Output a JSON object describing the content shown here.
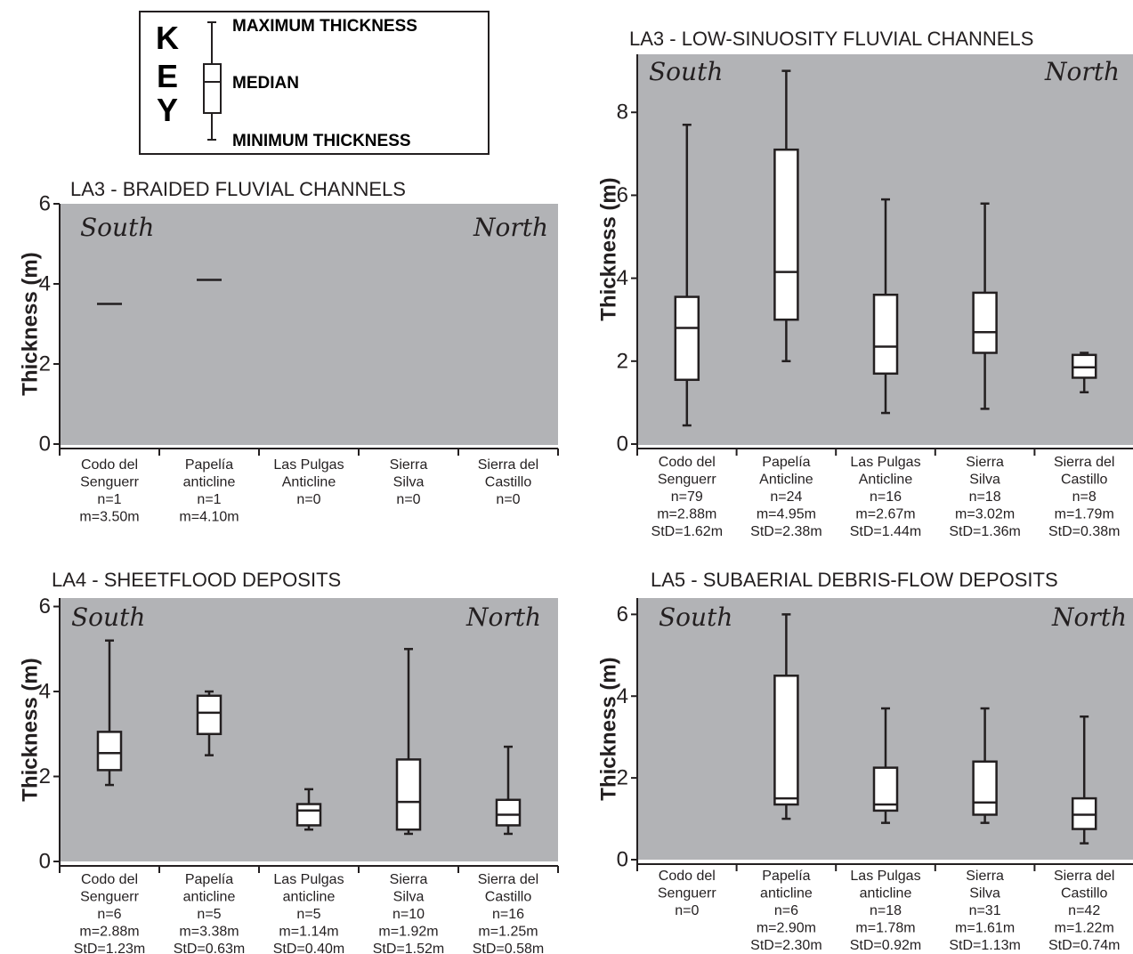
{
  "key": {
    "letters": [
      "K",
      "E",
      "Y"
    ],
    "max_label": "MAXIMUM THICKNESS",
    "median_label": "MEDIAN",
    "min_label": "MINIMUM THICKNESS"
  },
  "chart_data": [
    {
      "type": "box",
      "title": "LA3 - BRAIDED FLUVIAL CHANNELS",
      "ylabel": "Thickness  (m)",
      "ylim": [
        0,
        6
      ],
      "yticks": [
        0,
        2,
        4,
        6
      ],
      "direction_labels": [
        "South",
        "North"
      ],
      "background": "#b2b3b6",
      "categories": [
        {
          "label": [
            "Codo del",
            "Senguerr",
            "n=1",
            "m=3.50m"
          ],
          "box": {
            "median": 3.5
          }
        },
        {
          "label": [
            "Papelía",
            "anticline",
            "n=1",
            "m=4.10m"
          ],
          "box": {
            "median": 4.1
          }
        },
        {
          "label": [
            "Las Pulgas",
            "Anticline",
            "n=0"
          ],
          "box": null
        },
        {
          "label": [
            "Sierra",
            "Silva",
            "n=0"
          ],
          "box": null
        },
        {
          "label": [
            "Sierra del",
            "Castillo",
            "n=0"
          ],
          "box": null
        }
      ]
    },
    {
      "type": "box",
      "title": "LA3 - LOW-SINUOSITY FLUVIAL CHANNELS",
      "ylabel": "Thickness  (m)",
      "ylim": [
        0,
        9.4
      ],
      "yticks": [
        0,
        2,
        4,
        6,
        8
      ],
      "direction_labels": [
        "South",
        "North"
      ],
      "background": "#b2b3b6",
      "categories": [
        {
          "label": [
            "Codo del",
            "Senguerr",
            "n=79",
            "m=2.88m",
            "StD=1.62m"
          ],
          "box": {
            "min": 0.45,
            "q1": 1.55,
            "median": 2.8,
            "q3": 3.55,
            "max": 7.7
          }
        },
        {
          "label": [
            "Papelía",
            "Anticline",
            "n=24",
            "m=4.95m",
            "StD=2.38m"
          ],
          "box": {
            "min": 2.0,
            "q1": 3.0,
            "median": 4.15,
            "q3": 7.1,
            "max": 9.0
          }
        },
        {
          "label": [
            "Las Pulgas",
            "Anticline",
            "n=16",
            "m=2.67m",
            "StD=1.44m"
          ],
          "box": {
            "min": 0.75,
            "q1": 1.7,
            "median": 2.35,
            "q3": 3.6,
            "max": 5.9
          }
        },
        {
          "label": [
            "Sierra",
            "Silva",
            "n=18",
            "m=3.02m",
            "StD=1.36m"
          ],
          "box": {
            "min": 0.85,
            "q1": 2.2,
            "median": 2.7,
            "q3": 3.65,
            "max": 5.8
          }
        },
        {
          "label": [
            "Sierra del",
            "Castillo",
            "n=8",
            "m=1.79m",
            "StD=0.38m"
          ],
          "box": {
            "min": 1.25,
            "q1": 1.6,
            "median": 1.85,
            "q3": 2.15,
            "max": 2.2
          }
        }
      ]
    },
    {
      "type": "box",
      "title": "LA4 - SHEETFLOOD DEPOSITS",
      "ylabel": "Thickness  (m)",
      "ylim": [
        0,
        6.2
      ],
      "yticks": [
        0,
        2,
        4,
        6
      ],
      "direction_labels": [
        "South",
        "North"
      ],
      "background": "#b2b3b6",
      "categories": [
        {
          "label": [
            "Codo del",
            "Senguerr",
            "n=6",
            "m=2.88m",
            "StD=1.23m"
          ],
          "box": {
            "min": 1.8,
            "q1": 2.15,
            "median": 2.55,
            "q3": 3.05,
            "max": 5.2
          }
        },
        {
          "label": [
            "Papelía",
            "anticline",
            "n=5",
            "m=3.38m",
            "StD=0.63m"
          ],
          "box": {
            "min": 2.5,
            "q1": 3.0,
            "median": 3.5,
            "q3": 3.9,
            "max": 4.0
          }
        },
        {
          "label": [
            "Las Pulgas",
            "anticline",
            "n=5",
            "m=1.14m",
            "StD=0.40m"
          ],
          "box": {
            "min": 0.75,
            "q1": 0.85,
            "median": 1.2,
            "q3": 1.35,
            "max": 1.7
          }
        },
        {
          "label": [
            "Sierra",
            "Silva",
            "n=10",
            "m=1.92m",
            "StD=1.52m"
          ],
          "box": {
            "min": 0.65,
            "q1": 0.75,
            "median": 1.4,
            "q3": 2.4,
            "max": 5.0
          }
        },
        {
          "label": [
            "Sierra del",
            "Castillo",
            "n=16",
            "m=1.25m",
            "StD=0.58m"
          ],
          "box": {
            "min": 0.65,
            "q1": 0.85,
            "median": 1.1,
            "q3": 1.45,
            "max": 2.7
          }
        }
      ]
    },
    {
      "type": "box",
      "title": "LA5 - SUBAERIAL DEBRIS-FLOW DEPOSITS",
      "ylabel": "Thickness  (m)",
      "ylim": [
        0,
        6.4
      ],
      "yticks": [
        0,
        2,
        4,
        6
      ],
      "direction_labels": [
        "South",
        "North"
      ],
      "background": "#b2b3b6",
      "categories": [
        {
          "label": [
            "Codo del",
            "Senguerr",
            "n=0"
          ],
          "box": null
        },
        {
          "label": [
            "Papelía",
            "anticline",
            "n=6",
            "m=2.90m",
            "StD=2.30m"
          ],
          "box": {
            "min": 1.0,
            "q1": 1.35,
            "median": 1.5,
            "q3": 4.5,
            "max": 6.0
          }
        },
        {
          "label": [
            "Las Pulgas",
            "anticline",
            "n=18",
            "m=1.78m",
            "StD=0.92m"
          ],
          "box": {
            "min": 0.9,
            "q1": 1.2,
            "median": 1.35,
            "q3": 2.25,
            "max": 3.7
          }
        },
        {
          "label": [
            "Sierra",
            "Silva",
            "n=31",
            "m=1.61m",
            "StD=1.13m"
          ],
          "box": {
            "min": 0.9,
            "q1": 1.1,
            "median": 1.4,
            "q3": 2.4,
            "max": 3.7
          }
        },
        {
          "label": [
            "Sierra del",
            "Castillo",
            "n=42",
            "m=1.22m",
            "StD=0.74m"
          ],
          "box": {
            "min": 0.4,
            "q1": 0.75,
            "median": 1.1,
            "q3": 1.5,
            "max": 3.5
          }
        }
      ]
    }
  ]
}
